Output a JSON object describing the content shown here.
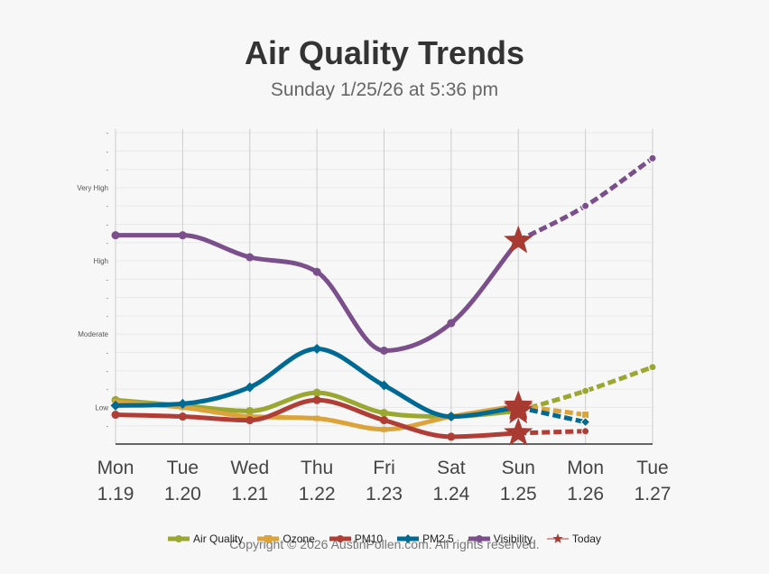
{
  "header": {
    "title": "Air Quality Trends",
    "subtitle": "Sunday 1/25/26 at 5:36 pm"
  },
  "footer": {
    "copyright": "Copyright © 2026 AustinPollen.com.  All rights reserved."
  },
  "chart_data": {
    "type": "line",
    "title": "Air Quality Trends",
    "subtitle": "Sunday 1/25/26 at 5:36 pm",
    "xlabel": "",
    "ylabel": "",
    "x_days": [
      "Mon",
      "Tue",
      "Wed",
      "Thu",
      "Fri",
      "Sat",
      "Sun",
      "Mon",
      "Tue"
    ],
    "x_dates": [
      "1.19",
      "1.20",
      "1.21",
      "1.22",
      "1.23",
      "1.24",
      "1.25",
      "1.26",
      "1.27"
    ],
    "today_index": 6,
    "ylim": [
      0,
      17
    ],
    "y_ticks": [
      {
        "value": 2,
        "label": "Low"
      },
      {
        "value": 6,
        "label": "Moderate"
      },
      {
        "value": 10,
        "label": "High"
      },
      {
        "value": 14,
        "label": "Very High"
      }
    ],
    "y_minor_tick_label": "-",
    "grid": true,
    "legend_position": "bottom",
    "series": [
      {
        "name": "Air Quality",
        "color": "#9aa832",
        "marker": "circle",
        "values": [
          2.4,
          2.1,
          1.8,
          2.8,
          1.7,
          1.5,
          1.8,
          2.9,
          4.2
        ]
      },
      {
        "name": "Ozone",
        "color": "#dba33a",
        "marker": "square",
        "values": [
          2.3,
          2.0,
          1.5,
          1.4,
          0.8,
          1.5,
          2.1,
          1.6,
          null
        ]
      },
      {
        "name": "PM10",
        "color": "#b03e36",
        "marker": "circle",
        "values": [
          1.6,
          1.5,
          1.3,
          2.4,
          1.3,
          0.4,
          0.6,
          0.7,
          null
        ]
      },
      {
        "name": "PM2.5",
        "color": "#006a94",
        "marker": "diamond",
        "values": [
          2.1,
          2.2,
          3.1,
          5.2,
          3.2,
          1.5,
          2.0,
          1.2,
          null
        ]
      },
      {
        "name": "Visibility",
        "color": "#7a4f8c",
        "marker": "circle",
        "values": [
          11.4,
          11.4,
          10.2,
          9.4,
          5.1,
          6.6,
          11.1,
          13.0,
          15.6
        ]
      }
    ],
    "today_marker": {
      "name": "Today",
      "color": "#a83a32",
      "marker": "star"
    }
  }
}
